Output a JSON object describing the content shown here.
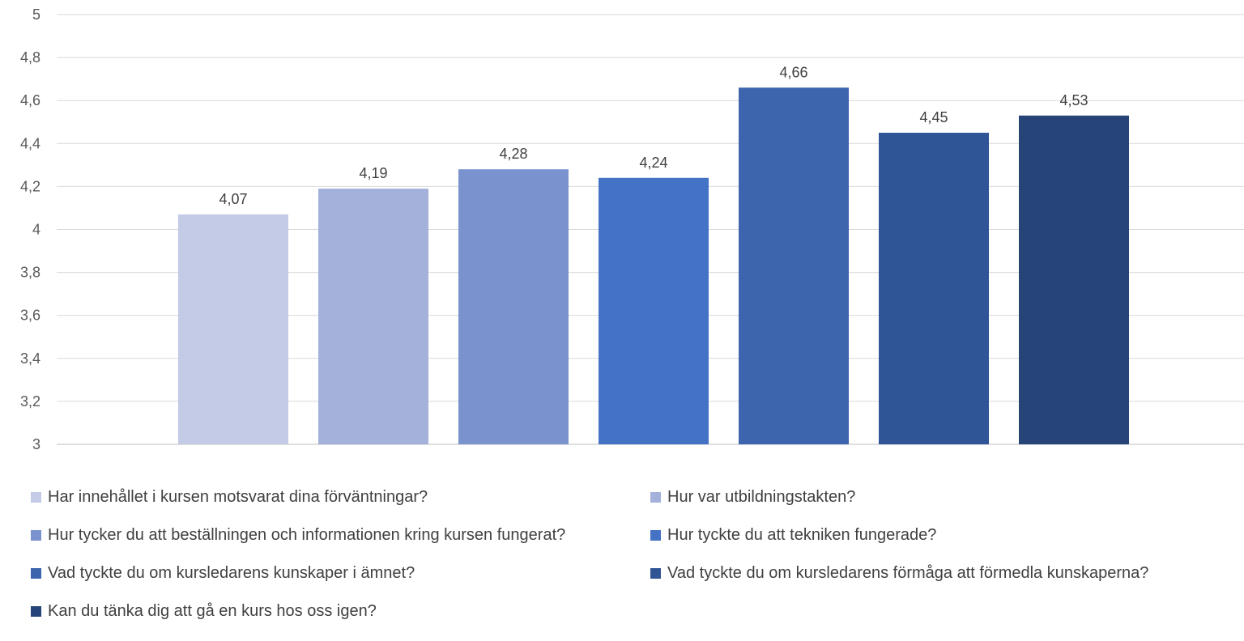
{
  "chart_data": {
    "type": "bar",
    "title": "",
    "xlabel": "",
    "ylabel": "",
    "ylim": [
      3,
      5
    ],
    "yticks": [
      "3",
      "3,2",
      "3,4",
      "3,6",
      "3,8",
      "4",
      "4,2",
      "4,4",
      "4,6",
      "4,8",
      "5"
    ],
    "ytick_values": [
      3,
      3.2,
      3.4,
      3.6,
      3.8,
      4,
      4.2,
      4.4,
      4.6,
      4.8,
      5
    ],
    "grid": true,
    "legend_position": "bottom",
    "series": [
      {
        "name": "Har innehållet i kursen motsvarat dina förväntningar?",
        "value": 4.07,
        "label": "4,07",
        "color": "#C3CBE6"
      },
      {
        "name": "Hur var utbildningstakten?",
        "value": 4.19,
        "label": "4,19",
        "color": "#A3B1DB"
      },
      {
        "name": "Hur tycker du att beställningen och informationen kring kursen fungerat?",
        "value": 4.28,
        "label": "4,28",
        "color": "#7A93CE"
      },
      {
        "name": "Hur tyckte du att tekniken fungerade?",
        "value": 4.24,
        "label": "4,24",
        "color": "#4472C4"
      },
      {
        "name": "Vad tyckte du om kursledarens kunskaper i ämnet?",
        "value": 4.66,
        "label": "4,66",
        "color": "#3C65AD"
      },
      {
        "name": "Vad tyckte du om kursledarens förmåga att förmedla kunskaperna?",
        "value": 4.45,
        "label": "4,45",
        "color": "#2F5597"
      },
      {
        "name": "Kan du tänka dig att gå en kurs hos oss igen?",
        "value": 4.53,
        "label": "4,53",
        "color": "#264478"
      }
    ]
  }
}
